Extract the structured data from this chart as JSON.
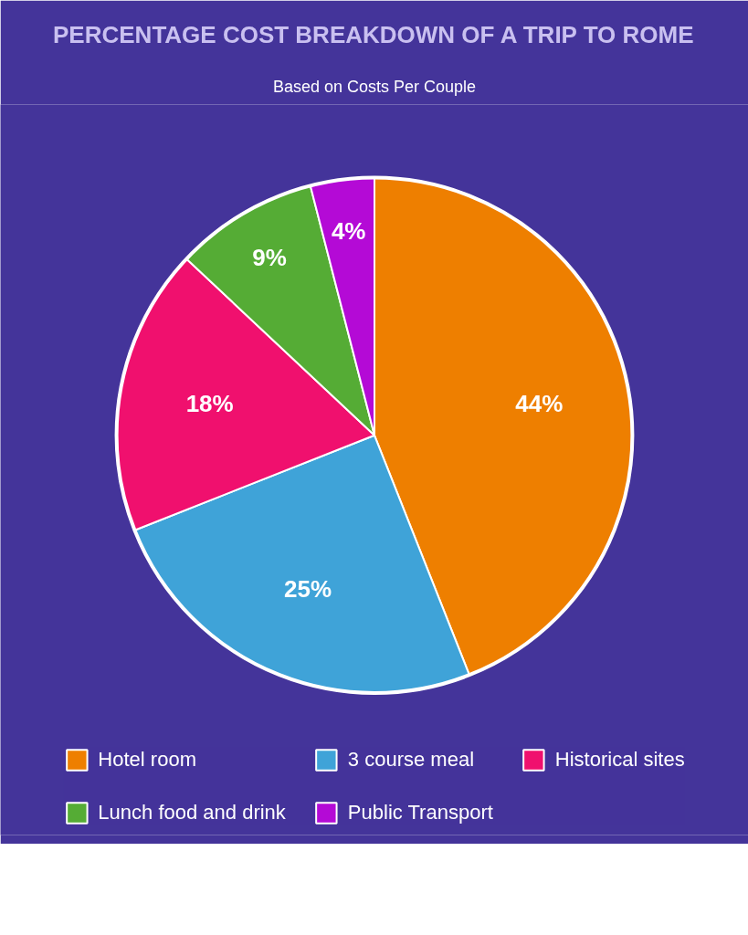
{
  "chart_data": {
    "type": "pie",
    "title": "PERCENTAGE COST BREAKDOWN OF A TRIP TO ROME",
    "subtitle": "Based on Costs Per Couple",
    "categories": [
      "Hotel room",
      "3 course meal",
      "Historical sites",
      "Lunch food and drink",
      "Public Transport"
    ],
    "values": [
      44,
      25,
      18,
      9,
      4
    ],
    "colors": [
      "#ee7f00",
      "#3fa3d8",
      "#f0106e",
      "#55ac35",
      "#b40ad6"
    ],
    "value_labels": [
      "44%",
      "25%",
      "18%",
      "9%",
      "4%"
    ],
    "legend": "bottom"
  }
}
